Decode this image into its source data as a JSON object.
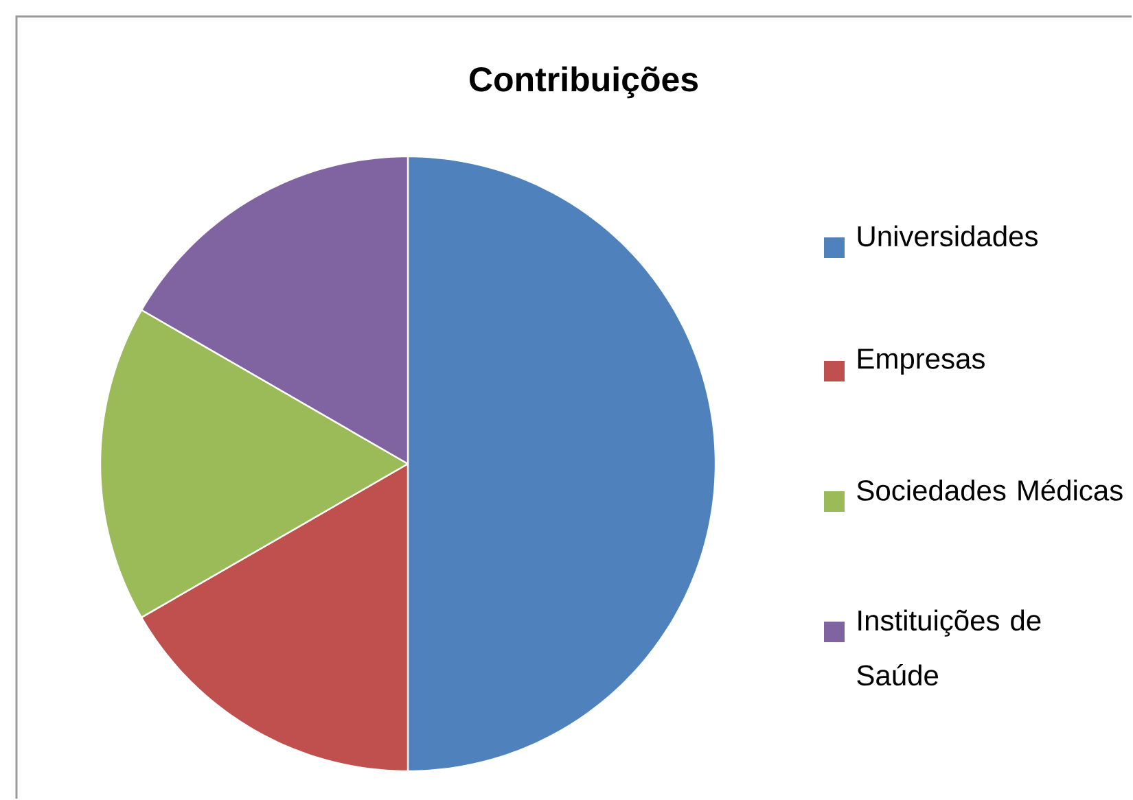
{
  "chart_data": {
    "type": "pie",
    "title": "Contribuições",
    "categories": [
      "Universidades",
      "Empresas",
      "Sociedades Médicas",
      "Instituições de Saúde"
    ],
    "values": [
      50,
      16.67,
      16.67,
      16.66
    ],
    "colors": [
      "#4f81bd",
      "#c0504d",
      "#9bbb59",
      "#8064a2"
    ],
    "legend": "right"
  }
}
